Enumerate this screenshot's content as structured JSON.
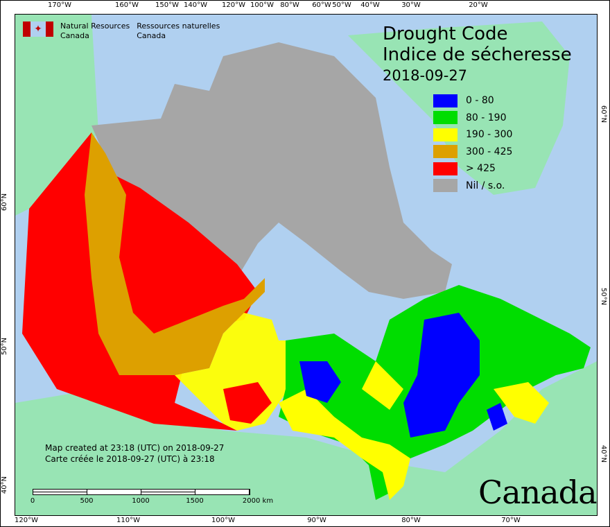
{
  "logo": {
    "en_line1": "Natural Resources",
    "en_line2": "Canada",
    "fr_line1": "Ressources naturelles",
    "fr_line2": "Canada"
  },
  "title": {
    "en": "Drought Code",
    "fr": "Indice de sécheresse",
    "date": "2018-09-27"
  },
  "legend": [
    {
      "label": "0 - 80",
      "color": "#0000ff"
    },
    {
      "label": "80 - 190",
      "color": "#00dd00"
    },
    {
      "label": "190 - 300",
      "color": "#ffff00"
    },
    {
      "label": "300 - 425",
      "color": "#dda000"
    },
    {
      "label": "> 425",
      "color": "#ff0000"
    },
    {
      "label": "Nil / s.o.",
      "color": "#a6a6a6"
    }
  ],
  "notes": {
    "en": "Map created at 23:18 (UTC) on 2018-09-27",
    "fr": "Carte créée le 2018-09-27 (UTC) à 23:18"
  },
  "scale": {
    "labels": [
      "0",
      "500",
      "1000",
      "1500",
      "2000  km"
    ]
  },
  "axes": {
    "top": [
      "170°W",
      "160°W",
      "150°W",
      "140°W",
      "120°W",
      "100°W",
      "80°W",
      "60°W",
      "50°W",
      "40°W",
      "30°W",
      "20°W"
    ],
    "bottom": [
      "120°W",
      "110°W",
      "100°W",
      "90°W",
      "80°W",
      "70°W"
    ],
    "left": [
      "60°N",
      "50°N",
      "40°N"
    ],
    "right": [
      "60°N",
      "50°N",
      "40°N"
    ]
  },
  "wordmark": "Canada",
  "colors": {
    "ocean": "#b0d0f0",
    "land": "#98e4b4"
  }
}
